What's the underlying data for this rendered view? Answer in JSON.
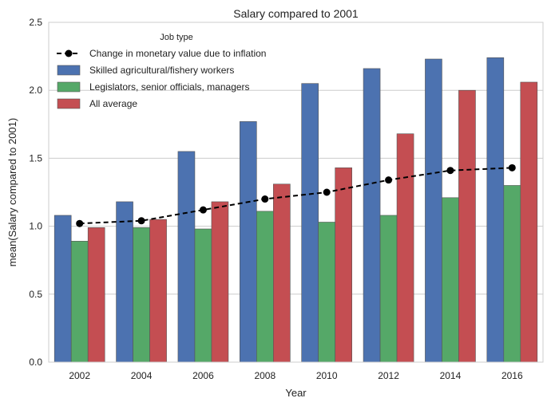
{
  "chart_data": {
    "type": "bar",
    "title": "Salary compared to 2001",
    "xlabel": "Year",
    "ylabel": "mean(Salary compared to 2001)",
    "ylim": [
      0,
      2.5
    ],
    "yticks": [
      "0.0",
      "0.5",
      "1.0",
      "1.5",
      "2.0",
      "2.5"
    ],
    "grid": true,
    "categories": [
      "2002",
      "2004",
      "2006",
      "2008",
      "2010",
      "2012",
      "2014",
      "2016"
    ],
    "series": [
      {
        "name": "Skilled agricultural/fishery workers",
        "color": "#4c72b0",
        "values": [
          1.08,
          1.18,
          1.55,
          1.77,
          2.05,
          2.16,
          2.23,
          2.24
        ]
      },
      {
        "name": "Legislators, senior officials, managers",
        "color": "#55a868",
        "values": [
          0.89,
          0.99,
          0.98,
          1.11,
          1.03,
          1.08,
          1.21,
          1.3
        ]
      },
      {
        "name": "All average",
        "color": "#c44e52",
        "values": [
          0.99,
          1.05,
          1.18,
          1.31,
          1.43,
          1.68,
          2.0,
          2.06
        ]
      }
    ],
    "line": {
      "name": "Change in monetary value due to inflation",
      "color": "#000000",
      "style": "dashed",
      "marker": "circle",
      "values": [
        1.02,
        1.04,
        1.12,
        1.2,
        1.25,
        1.34,
        1.41,
        1.43
      ]
    },
    "legend": {
      "title": "Job type",
      "placement": "top-left"
    }
  }
}
